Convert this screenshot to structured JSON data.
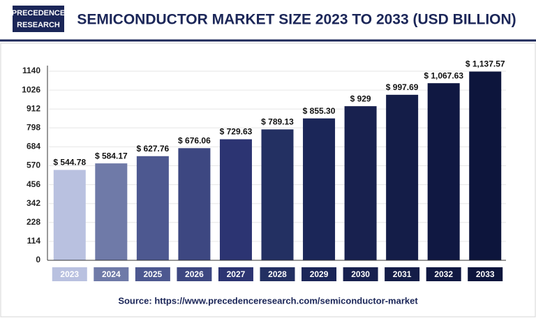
{
  "logo": [
    "PRECEDENCE",
    "RESEARCH"
  ],
  "source": "Source: https://www.precedenceresearch.com/semiconductor-market",
  "chart_data": {
    "type": "bar",
    "title": "SEMICONDUCTOR MARKET SIZE 2023 TO 2033 (USD BILLION)",
    "categories": [
      "2023",
      "2024",
      "2025",
      "2026",
      "2027",
      "2028",
      "2029",
      "2030",
      "2031",
      "2032",
      "2033"
    ],
    "values": [
      544.78,
      584.17,
      627.76,
      676.06,
      729.63,
      789.13,
      855.3,
      929,
      997.69,
      1067.63,
      1137.57
    ],
    "value_labels": [
      "$ 544.78",
      "$ 584.17",
      "$ 627.76",
      "$ 676.06",
      "$ 729.63",
      "$ 789.13",
      "$ 855.30",
      "$ 929",
      "$ 997.69",
      "$ 1,067.63",
      "$ 1,137.57"
    ],
    "colors": [
      "#b9c1e0",
      "#6f7aa8",
      "#4d5890",
      "#3d4781",
      "#2c3472",
      "#233062",
      "#1b2658",
      "#18214f",
      "#141d48",
      "#101842",
      "#0d153c"
    ],
    "ylim": [
      0,
      1140
    ],
    "yticks": [
      0,
      114,
      228,
      342,
      456,
      570,
      684,
      798,
      912,
      1026,
      1140
    ],
    "grid": true
  }
}
